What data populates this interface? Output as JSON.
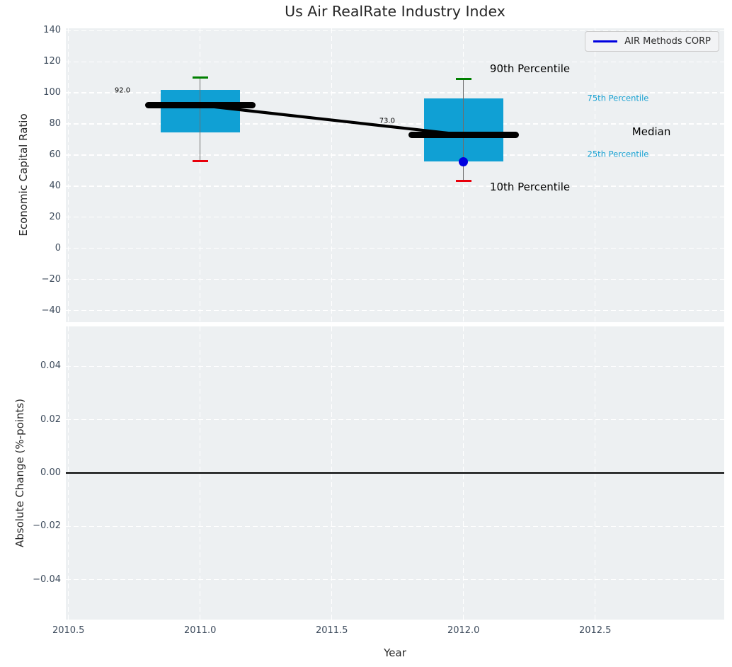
{
  "title": "Us Air RealRate Industry Index",
  "colors": {
    "box_fill": "#10a0d4",
    "median_color": "#000000",
    "trend_color": "#000000",
    "whisker_color": "#6e6e6e",
    "p90_cap": "#008000",
    "p10_cap": "#e8000b",
    "company_color": "#0000e0",
    "axes_bg": "#edf0f2",
    "grid_color": "#ffffff",
    "tick_color": "#3d4b5c",
    "text_color": "#262626",
    "percentile_label_color": "#18a1d2"
  },
  "chart_data": [
    {
      "type": "boxplot",
      "title": "Us Air RealRate Industry Index",
      "ylabel": "Economic Capital Ratio",
      "series_label": "AIR Methods CORP",
      "legend_position": "upper right",
      "grid": "white dashed",
      "xlim": [
        2010.49,
        2012.99
      ],
      "ylim": [
        -47.5,
        141.5
      ],
      "xticks": [
        {
          "label": "",
          "value": 2010.5
        },
        {
          "label": "",
          "value": 2011.0
        },
        {
          "label": "",
          "value": 2011.5
        },
        {
          "label": "",
          "value": 2012.0
        },
        {
          "label": "",
          "value": 2012.5
        }
      ],
      "yticks": [
        {
          "label": "140",
          "value": 140
        },
        {
          "label": "120",
          "value": 120
        },
        {
          "label": "100",
          "value": 100
        },
        {
          "label": "80",
          "value": 80
        },
        {
          "label": "60",
          "value": 60
        },
        {
          "label": "40",
          "value": 40
        },
        {
          "label": "20",
          "value": 20
        },
        {
          "label": "0",
          "value": 0
        },
        {
          "label": "−20",
          "value": -20
        },
        {
          "label": "−40",
          "value": -40
        }
      ],
      "boxes": [
        {
          "x": 2011,
          "p90": 110,
          "p75": 102,
          "median": 92,
          "p25": 74.5,
          "p10": 56,
          "median_label": "92.0"
        },
        {
          "x": 2012,
          "p90": 109,
          "p75": 96.5,
          "median": 73,
          "p25": 56,
          "p10": 43.5,
          "median_label": "73.0"
        }
      ],
      "median_trend_line": {
        "points": [
          [
            2011,
            92
          ],
          [
            2012,
            73
          ]
        ]
      },
      "company_points": [
        [
          2012,
          55.5
        ]
      ],
      "annotations": [
        {
          "text": "92.0",
          "x": 2010.705,
          "y": 101.5,
          "ha": "center",
          "size": 10,
          "color": "#000000"
        },
        {
          "text": "73.0",
          "x": 2011.71,
          "y": 82,
          "ha": "center",
          "size": 10,
          "color": "#000000"
        },
        {
          "text": "90th Percentile",
          "x": 2012.1,
          "y": 115.5,
          "ha": "left",
          "size": 15,
          "color": "#000000"
        },
        {
          "text": "75th Percentile",
          "x": 2012.47,
          "y": 96.5,
          "ha": "left",
          "size": 11.5,
          "color": "#18a1d2"
        },
        {
          "text": "Median",
          "x": 2012.64,
          "y": 75,
          "ha": "left",
          "size": 15,
          "color": "#000000"
        },
        {
          "text": "25th Percentile",
          "x": 2012.47,
          "y": 60.5,
          "ha": "left",
          "size": 11.5,
          "color": "#18a1d2"
        },
        {
          "text": "10th Percentile",
          "x": 2012.1,
          "y": 39.5,
          "ha": "left",
          "size": 15,
          "color": "#000000"
        }
      ]
    },
    {
      "type": "line",
      "ylabel": "Absolute Change (%-points)",
      "xlabel": "Year",
      "grid": "white dashed",
      "xlim": [
        2010.49,
        2012.99
      ],
      "ylim": [
        -0.055,
        0.055
      ],
      "zero_line": 0.0,
      "series": [],
      "xticks": [
        {
          "label": "2010.5",
          "value": 2010.5
        },
        {
          "label": "2011.0",
          "value": 2011.0
        },
        {
          "label": "2011.5",
          "value": 2011.5
        },
        {
          "label": "2012.0",
          "value": 2012.0
        },
        {
          "label": "2012.5",
          "value": 2012.5
        }
      ],
      "yticks": [
        {
          "label": "0.04",
          "value": 0.04
        },
        {
          "label": "0.02",
          "value": 0.02
        },
        {
          "label": "0.00",
          "value": 0.0
        },
        {
          "label": "−0.02",
          "value": -0.02
        },
        {
          "label": "−0.04",
          "value": -0.04
        }
      ]
    }
  ]
}
